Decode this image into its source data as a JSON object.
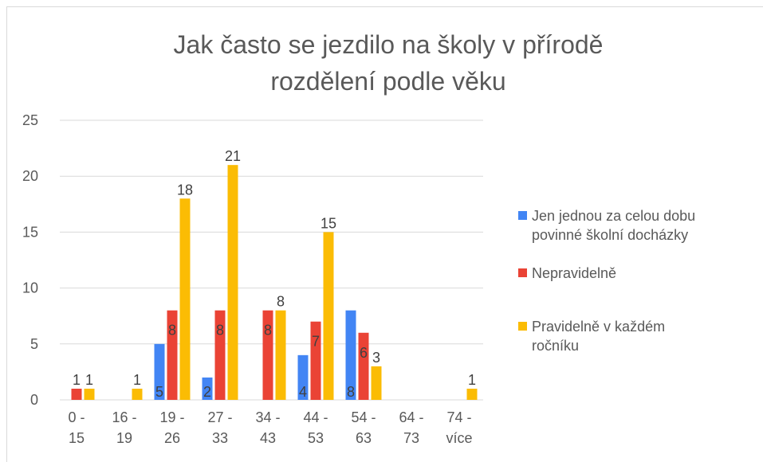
{
  "chart_data": {
    "type": "bar",
    "title": "Jak často se jezdilo na školy v přírodě",
    "subtitle": "rozdělení podle věku",
    "categories": [
      "0 - 15",
      "16 - 19",
      "19 - 26",
      "27 - 33",
      "34 - 43",
      "44 - 53",
      "54 - 63",
      "64 - 73",
      "74 - více"
    ],
    "series": [
      {
        "name": "Jen jednou za celou dobu povinné školní docházky",
        "color": "#4285f4",
        "label_position": "inside-base",
        "values": [
          null,
          null,
          5,
          2,
          null,
          4,
          8,
          null,
          null
        ]
      },
      {
        "name": "Nepravidelně",
        "color": "#ea4335",
        "label_position": "inside-end",
        "values": [
          1,
          null,
          8,
          8,
          8,
          7,
          6,
          null,
          null
        ]
      },
      {
        "name": "Pravidelně v každém ročníku",
        "color": "#fbbc04",
        "label_position": "outside-end",
        "values": [
          1,
          1,
          18,
          21,
          8,
          15,
          3,
          null,
          1
        ]
      }
    ],
    "ylim": [
      0,
      25
    ],
    "yticks": [
      0,
      5,
      10,
      15,
      20,
      25
    ],
    "grid": true,
    "legend": "right"
  }
}
